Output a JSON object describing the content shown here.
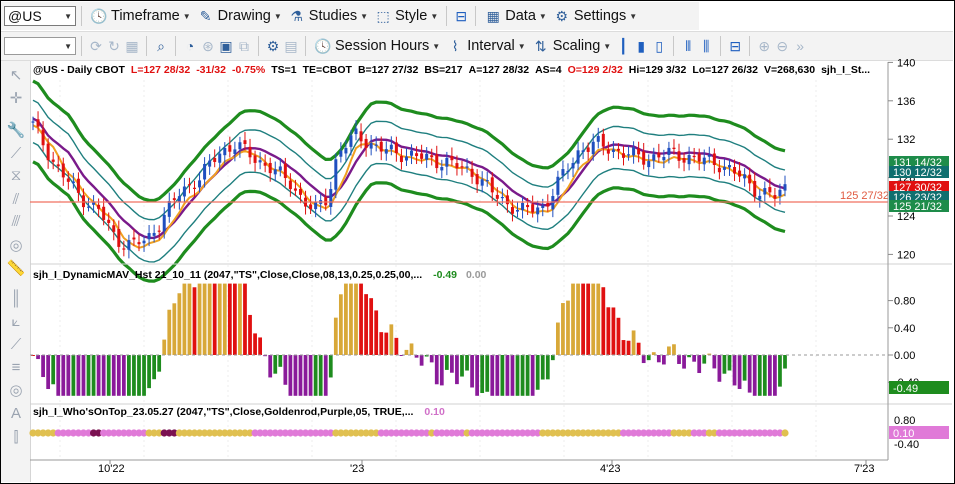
{
  "toolbar1": {
    "symbol": "@US",
    "timeframe": "Timeframe",
    "drawing": "Drawing",
    "studies": "Studies",
    "style": "Style",
    "data": "Data",
    "settings": "Settings"
  },
  "toolbar2": {
    "session_hours": "Session Hours",
    "interval": "Interval",
    "scaling": "Scaling"
  },
  "price_header": [
    {
      "t": "@US - Daily  CBOT",
      "c": "#000000"
    },
    {
      "t": "L=127 28/32",
      "c": "#e01010"
    },
    {
      "t": "-31/32",
      "c": "#e01010"
    },
    {
      "t": "-0.75%",
      "c": "#e01010"
    },
    {
      "t": "TS=1",
      "c": "#000000"
    },
    {
      "t": "TE=CBOT",
      "c": "#000000"
    },
    {
      "t": "B=127 27/32",
      "c": "#000000"
    },
    {
      "t": "BS=217",
      "c": "#000000"
    },
    {
      "t": "A=127 28/32",
      "c": "#000000"
    },
    {
      "t": "AS=4",
      "c": "#000000"
    },
    {
      "t": "O=129 2/32",
      "c": "#e01010"
    },
    {
      "t": "Hi=129 3/32",
      "c": "#000000"
    },
    {
      "t": "Lo=127 26/32",
      "c": "#000000"
    },
    {
      "t": "V=268,630",
      "c": "#000000"
    },
    {
      "t": "sjh_I_St...",
      "c": "#000000"
    }
  ],
  "price_ticks": [
    "140",
    "136",
    "132",
    "128",
    "124",
    "120"
  ],
  "price_ref_label": "125 27/32",
  "price_badges": [
    {
      "t": "131 14/32",
      "bg": "#1e8c4a",
      "fg": "#ffffff"
    },
    {
      "t": "130 12/32",
      "bg": "#0f6f6f",
      "fg": "#ffffff"
    },
    {
      "t": "127 30/32",
      "bg": "#e01010",
      "fg": "#ffffff"
    },
    {
      "t": "126 23/32",
      "bg": "#0f6f6f",
      "fg": "#ffffff"
    },
    {
      "t": "125 21/32",
      "bg": "#1e8c4a",
      "fg": "#ffffff"
    }
  ],
  "ind1_header": {
    "name": "sjh_I_DynamicMAV_Hst 21_10_11 (2047,\"TS\",Close,Close,08,13,0.25,0.25,00,...",
    "val1": "-0.49",
    "val2": "0.00"
  },
  "ind1_ticks": [
    "0.80",
    "0.40",
    "0.00",
    "-0.40"
  ],
  "ind1_badge": "-0.49",
  "ind2_header": {
    "name": "sjh_I_Who'sOnTop_23.05.27 (2047,\"TS\",Close,Goldenrod,Purple,05,  TRUE,...",
    "val1": "0.10"
  },
  "ind2_ticks": [
    "0.80",
    "0.40",
    "-0.40"
  ],
  "ind2_badge": "0.10",
  "x_labels": [
    "10'22",
    "'23",
    "4'23",
    "7'23"
  ],
  "colors": {
    "up": "#1f4fbf",
    "down": "#e01010",
    "env_outer": "#1e8c1e",
    "env_inner": "#1f7f7f",
    "ma_orange": "#f0a020",
    "ma_purple": "#7a1a8a",
    "hist_purple": "#8a1a9a",
    "hist_green": "#1e8c1e",
    "hist_red": "#e01010",
    "hist_gold": "#d8a838",
    "dot_pink": "#e07ad8",
    "dot_gold": "#e0c050",
    "dot_dark": "#7a1050"
  }
}
